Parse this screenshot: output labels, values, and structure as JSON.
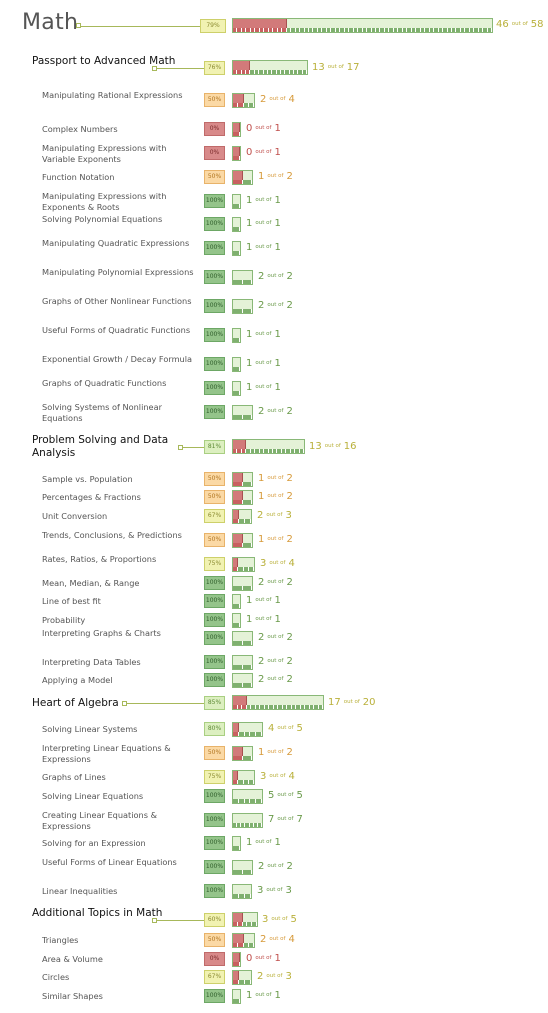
{
  "title": "Math",
  "overall": {
    "pct": "79%",
    "done": 46,
    "total": 58,
    "of_label": "out of"
  },
  "sections": [
    {
      "name": "Passport to Advanced Math",
      "pct": "76%",
      "done": 13,
      "total": 17,
      "items": [
        {
          "name": "Manipulating Rational Expressions",
          "pct": "50%",
          "done": 2,
          "total": 4
        },
        {
          "name": "Complex Numbers",
          "pct": "0%",
          "done": 0,
          "total": 1
        },
        {
          "name": "Manipulating Expressions with Variable Exponents",
          "pct": "0%",
          "done": 0,
          "total": 1
        },
        {
          "name": "Function Notation",
          "pct": "50%",
          "done": 1,
          "total": 2
        },
        {
          "name": "Manipulating Expressions with Exponents & Roots",
          "pct": "100%",
          "done": 1,
          "total": 1
        },
        {
          "name": "Solving Polynomial Equations",
          "pct": "100%",
          "done": 1,
          "total": 1
        },
        {
          "name": "Manipulating Quadratic Expressions",
          "pct": "100%",
          "done": 1,
          "total": 1
        },
        {
          "name": "Manipulating Polynomial Expressions",
          "pct": "100%",
          "done": 2,
          "total": 2
        },
        {
          "name": "Graphs of Other Nonlinear Functions",
          "pct": "100%",
          "done": 2,
          "total": 2
        },
        {
          "name": "Useful Forms of Quadratic Functions",
          "pct": "100%",
          "done": 1,
          "total": 1
        },
        {
          "name": "Exponential Growth / Decay Formula",
          "pct": "100%",
          "done": 1,
          "total": 1
        },
        {
          "name": "Graphs of Quadratic Functions",
          "pct": "100%",
          "done": 1,
          "total": 1
        },
        {
          "name": "Solving Systems of Nonlinear Equations",
          "pct": "100%",
          "done": 2,
          "total": 2
        }
      ]
    },
    {
      "name": "Problem Solving and Data Analysis",
      "pct": "81%",
      "done": 13,
      "total": 16,
      "items": [
        {
          "name": "Sample vs. Population",
          "pct": "50%",
          "done": 1,
          "total": 2
        },
        {
          "name": "Percentages & Fractions",
          "pct": "50%",
          "done": 1,
          "total": 2
        },
        {
          "name": "Unit Conversion",
          "pct": "67%",
          "done": 2,
          "total": 3
        },
        {
          "name": "Trends, Conclusions, & Predictions",
          "pct": "50%",
          "done": 1,
          "total": 2
        },
        {
          "name": "Rates, Ratios, & Proportions",
          "pct": "75%",
          "done": 3,
          "total": 4
        },
        {
          "name": "Mean, Median, & Range",
          "pct": "100%",
          "done": 2,
          "total": 2
        },
        {
          "name": "Line of best fit",
          "pct": "100%",
          "done": 1,
          "total": 1
        },
        {
          "name": "Probability",
          "pct": "100%",
          "done": 1,
          "total": 1
        },
        {
          "name": "Interpreting Graphs & Charts",
          "pct": "100%",
          "done": 2,
          "total": 2
        },
        {
          "name": "Interpreting Data Tables",
          "pct": "100%",
          "done": 2,
          "total": 2
        },
        {
          "name": "Applying a Model",
          "pct": "100%",
          "done": 2,
          "total": 2
        }
      ]
    },
    {
      "name": "Heart of Algebra",
      "pct": "85%",
      "done": 17,
      "total": 20,
      "items": [
        {
          "name": "Solving Linear Systems",
          "pct": "80%",
          "done": 4,
          "total": 5
        },
        {
          "name": "Interpreting Linear Equations & Expressions",
          "pct": "50%",
          "done": 1,
          "total": 2
        },
        {
          "name": "Graphs of Lines",
          "pct": "75%",
          "done": 3,
          "total": 4
        },
        {
          "name": "Solving Linear Equations",
          "pct": "100%",
          "done": 5,
          "total": 5
        },
        {
          "name": "Creating Linear Equations & Expressions",
          "pct": "100%",
          "done": 7,
          "total": 7
        },
        {
          "name": "Solving for an Expression",
          "pct": "100%",
          "done": 1,
          "total": 1
        },
        {
          "name": "Useful Forms of Linear Equations",
          "pct": "100%",
          "done": 2,
          "total": 2
        },
        {
          "name": "Linear Inequalities",
          "pct": "100%",
          "done": 3,
          "total": 3
        }
      ]
    },
    {
      "name": "Additional Topics in Math",
      "pct": "60%",
      "done": 3,
      "total": 5,
      "items": [
        {
          "name": "Triangles",
          "pct": "50%",
          "done": 2,
          "total": 4
        },
        {
          "name": "Area & Volume",
          "pct": "0%",
          "done": 0,
          "total": 1
        },
        {
          "name": "Circles",
          "pct": "67%",
          "done": 2,
          "total": 3
        },
        {
          "name": "Similar Shapes",
          "pct": "100%",
          "done": 1,
          "total": 1
        }
      ]
    }
  ],
  "colors": {
    "line": "#a7b85a",
    "fill_wrong": "#d27a7a",
    "fill_right": "#e4f2d7",
    "count_red": "#c0504d",
    "count_orange": "#d79a3a",
    "count_yellow": "#b9b03a",
    "count_green": "#6a9a4a"
  }
}
